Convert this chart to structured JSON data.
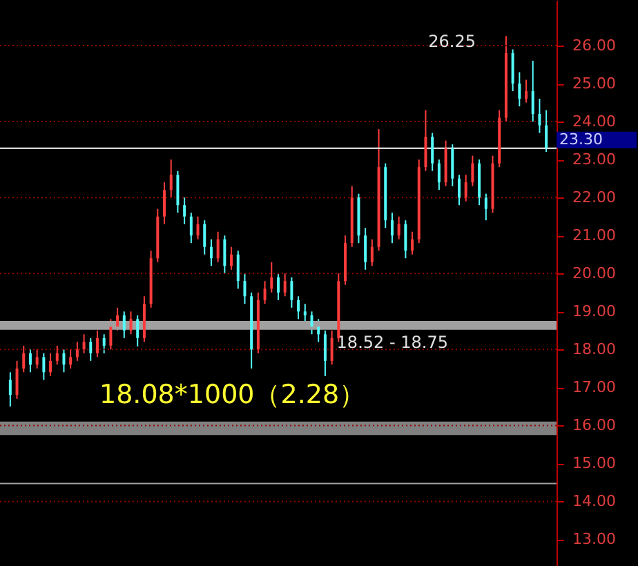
{
  "chart_data": {
    "type": "candlestick",
    "categories": [
      null,
      null,
      null,
      null,
      null,
      null,
      null,
      null,
      null,
      null,
      null,
      null,
      null,
      null,
      null,
      null,
      null,
      null,
      null,
      null,
      null,
      null,
      null,
      null,
      null,
      null,
      null,
      null,
      null,
      null,
      null,
      null,
      null,
      null,
      null,
      null,
      null,
      null,
      null,
      null,
      null,
      null,
      null,
      null,
      null,
      null,
      null,
      null,
      null,
      null,
      null,
      null,
      null,
      null,
      null,
      null,
      null,
      null,
      null,
      null,
      null,
      null,
      null,
      null,
      null,
      null,
      null,
      null,
      null,
      null,
      null,
      null,
      null,
      null,
      null,
      null,
      null,
      null,
      null,
      null,
      null
    ],
    "ohlc": [
      [
        17.2,
        17.4,
        16.5,
        16.8
      ],
      [
        16.8,
        17.7,
        16.7,
        17.5
      ],
      [
        17.5,
        18.1,
        17.4,
        17.9
      ],
      [
        17.9,
        18.0,
        17.4,
        17.6
      ],
      [
        17.6,
        18.0,
        17.5,
        17.8
      ],
      [
        17.8,
        17.9,
        17.2,
        17.4
      ],
      [
        17.4,
        17.9,
        17.3,
        17.7
      ],
      [
        17.7,
        18.1,
        17.6,
        17.9
      ],
      [
        17.9,
        18.0,
        17.4,
        17.6
      ],
      [
        17.6,
        18.0,
        17.5,
        17.8
      ],
      [
        17.8,
        18.2,
        17.7,
        18.0
      ],
      [
        18.0,
        18.4,
        17.9,
        18.2
      ],
      [
        18.2,
        18.3,
        17.7,
        17.9
      ],
      [
        17.9,
        18.5,
        17.8,
        18.3
      ],
      [
        18.3,
        18.4,
        17.9,
        18.1
      ],
      [
        18.1,
        18.8,
        18.0,
        18.6
      ],
      [
        18.6,
        19.1,
        18.5,
        18.9
      ],
      [
        18.9,
        19.0,
        18.3,
        18.5
      ],
      [
        18.5,
        19.0,
        18.4,
        18.8
      ],
      [
        18.8,
        18.9,
        18.08,
        18.3
      ],
      [
        18.3,
        19.4,
        18.2,
        19.2
      ],
      [
        19.2,
        20.6,
        19.1,
        20.4
      ],
      [
        20.4,
        21.7,
        20.3,
        21.5
      ],
      [
        21.5,
        22.4,
        21.3,
        22.2
      ],
      [
        22.2,
        23.0,
        22.0,
        22.6
      ],
      [
        22.6,
        22.7,
        21.6,
        21.8
      ],
      [
        21.8,
        22.0,
        21.3,
        21.5
      ],
      [
        21.5,
        21.6,
        20.8,
        21.0
      ],
      [
        21.0,
        21.5,
        20.9,
        21.3
      ],
      [
        21.3,
        21.4,
        20.5,
        20.7
      ],
      [
        20.7,
        20.9,
        20.2,
        20.4
      ],
      [
        20.4,
        21.1,
        20.3,
        20.9
      ],
      [
        20.9,
        21.0,
        20.0,
        20.2
      ],
      [
        20.2,
        20.7,
        20.1,
        20.5
      ],
      [
        20.5,
        20.6,
        19.6,
        19.8
      ],
      [
        19.8,
        20.0,
        19.2,
        19.4
      ],
      [
        19.4,
        19.5,
        17.5,
        18.0
      ],
      [
        18.0,
        19.5,
        17.9,
        19.3
      ],
      [
        19.3,
        19.8,
        19.2,
        19.6
      ],
      [
        19.6,
        20.3,
        19.5,
        19.9
      ],
      [
        19.9,
        20.0,
        19.3,
        19.5
      ],
      [
        19.5,
        20.0,
        19.4,
        19.8
      ],
      [
        19.8,
        19.9,
        19.1,
        19.3
      ],
      [
        19.3,
        19.4,
        18.8,
        19.0
      ],
      [
        19.0,
        19.2,
        18.7,
        18.9
      ],
      [
        18.9,
        19.0,
        18.4,
        18.6
      ],
      [
        18.6,
        18.8,
        18.2,
        18.4
      ],
      [
        18.4,
        18.5,
        17.3,
        17.7
      ],
      [
        17.7,
        18.5,
        17.6,
        18.3
      ],
      [
        18.3,
        20.0,
        18.2,
        19.8
      ],
      [
        19.8,
        21.0,
        19.7,
        20.8
      ],
      [
        20.8,
        22.3,
        20.7,
        22.0
      ],
      [
        22.0,
        22.1,
        20.8,
        21.0
      ],
      [
        21.0,
        21.2,
        20.1,
        20.3
      ],
      [
        20.3,
        20.9,
        20.2,
        20.7
      ],
      [
        20.7,
        23.8,
        20.6,
        22.8
      ],
      [
        22.8,
        22.9,
        21.2,
        21.4
      ],
      [
        21.4,
        21.6,
        20.8,
        21.0
      ],
      [
        21.0,
        21.5,
        20.9,
        21.3
      ],
      [
        21.3,
        21.4,
        20.4,
        20.6
      ],
      [
        20.6,
        21.1,
        20.5,
        20.9
      ],
      [
        20.9,
        23.0,
        20.8,
        22.8
      ],
      [
        22.8,
        24.3,
        22.7,
        23.6
      ],
      [
        23.6,
        23.7,
        22.7,
        22.9
      ],
      [
        22.9,
        23.0,
        22.2,
        22.4
      ],
      [
        22.4,
        23.5,
        22.3,
        23.3
      ],
      [
        23.3,
        23.4,
        22.3,
        22.5
      ],
      [
        22.5,
        22.6,
        21.8,
        22.0
      ],
      [
        22.0,
        22.6,
        21.9,
        22.4
      ],
      [
        22.4,
        23.1,
        22.3,
        22.9
      ],
      [
        22.9,
        23.0,
        21.8,
        22.0
      ],
      [
        22.0,
        22.1,
        21.4,
        21.7
      ],
      [
        21.7,
        23.1,
        21.6,
        22.9
      ],
      [
        22.9,
        24.3,
        22.8,
        24.1
      ],
      [
        24.1,
        26.25,
        24.0,
        25.8
      ],
      [
        25.8,
        25.9,
        24.8,
        25.0
      ],
      [
        25.0,
        25.3,
        24.4,
        24.6
      ],
      [
        24.6,
        25.1,
        24.5,
        24.8
      ],
      [
        24.8,
        25.6,
        24.0,
        24.2
      ],
      [
        24.2,
        24.6,
        23.7,
        23.9
      ],
      [
        23.9,
        24.3,
        23.2,
        23.3
      ]
    ],
    "colors": [
      "#54fcfc",
      "#ff3c3c",
      "#ff3c3c",
      "#54fcfc",
      "#ff3c3c",
      "#54fcfc",
      "#ff3c3c",
      "#ff3c3c",
      "#54fcfc",
      "#ff3c3c",
      "#ff3c3c",
      "#ff3c3c",
      "#54fcfc",
      "#ff3c3c",
      "#54fcfc",
      "#ff3c3c",
      "#ff3c3c",
      "#54fcfc",
      "#ff3c3c",
      "#54fcfc",
      "#ff3c3c",
      "#ff3c3c",
      "#ff3c3c",
      "#ff3c3c",
      "#ff3c3c",
      "#54fcfc",
      "#54fcfc",
      "#54fcfc",
      "#ff3c3c",
      "#54fcfc",
      "#54fcfc",
      "#ff3c3c",
      "#54fcfc",
      "#ff3c3c",
      "#54fcfc",
      "#54fcfc",
      "#54fcfc",
      "#ff3c3c",
      "#ff3c3c",
      "#ff3c3c",
      "#54fcfc",
      "#ff3c3c",
      "#54fcfc",
      "#54fcfc",
      "#54fcfc",
      "#54fcfc",
      "#54fcfc",
      "#54fcfc",
      "#ff3c3c",
      "#ff3c3c",
      "#ff3c3c",
      "#ff3c3c",
      "#54fcfc",
      "#54fcfc",
      "#ff3c3c",
      "#ff3c3c",
      "#54fcfc",
      "#54fcfc",
      "#ff3c3c",
      "#54fcfc",
      "#ff3c3c",
      "#ff3c3c",
      "#ff3c3c",
      "#54fcfc",
      "#54fcfc",
      "#ff3c3c",
      "#54fcfc",
      "#54fcfc",
      "#ff3c3c",
      "#ff3c3c",
      "#54fcfc",
      "#54fcfc",
      "#ff3c3c",
      "#ff3c3c",
      "#ff3c3c",
      "#54fcfc",
      "#54fcfc",
      "#ff3c3c",
      "#54fcfc",
      "#54fcfc",
      "#54fcfc"
    ],
    "ylim": [
      12.3,
      27.2
    ],
    "yticks": [
      {
        "value": 13,
        "label": "13.00"
      },
      {
        "value": 14,
        "label": "14.00"
      },
      {
        "value": 15,
        "label": "15.00"
      },
      {
        "value": 16,
        "label": "16.00"
      },
      {
        "value": 17,
        "label": "17.00"
      },
      {
        "value": 18,
        "label": "18.00"
      },
      {
        "value": 19,
        "label": "19.00"
      },
      {
        "value": 20,
        "label": "20.00"
      },
      {
        "value": 21,
        "label": "21.00"
      },
      {
        "value": 22,
        "label": "22.00"
      },
      {
        "value": 23,
        "label": "23.00"
      },
      {
        "value": 24,
        "label": "24.00"
      },
      {
        "value": 25,
        "label": "25.00"
      },
      {
        "value": 26,
        "label": "26.00"
      }
    ],
    "tick_labels": "y",
    "ref_lines": [
      {
        "axis": "y",
        "value": 14,
        "color": "#900000",
        "line_style": "dotted"
      },
      {
        "axis": "y",
        "value": 16,
        "color": "#900000",
        "line_style": "dotted"
      },
      {
        "axis": "y",
        "value": 18,
        "color": "#900000",
        "line_style": "dotted"
      },
      {
        "axis": "y",
        "value": 20,
        "color": "#900000",
        "line_style": "dotted"
      },
      {
        "axis": "y",
        "value": 22,
        "color": "#900000",
        "line_style": "dotted"
      },
      {
        "axis": "y",
        "value": 24,
        "color": "#900000",
        "line_style": "dotted"
      },
      {
        "axis": "y",
        "value": 26,
        "color": "#900000",
        "line_style": "dotted"
      },
      {
        "axis": "y",
        "value": 23.3,
        "label": "23.30",
        "color": "#ffffff",
        "line_style": "solid"
      },
      {
        "axis": "y",
        "value": 14.47,
        "color": "#a0a0a0",
        "line_style": "solid"
      }
    ],
    "bands": [
      {
        "axis": "y",
        "from": 15.75,
        "to": 16.1,
        "color": "#808080"
      },
      {
        "axis": "y",
        "from": 18.52,
        "to": 18.75,
        "label": "18.52 - 18.75",
        "color": "#a0a0a0"
      }
    ],
    "annotations": [
      "26.25",
      "18.08*1000（2.28）"
    ]
  }
}
